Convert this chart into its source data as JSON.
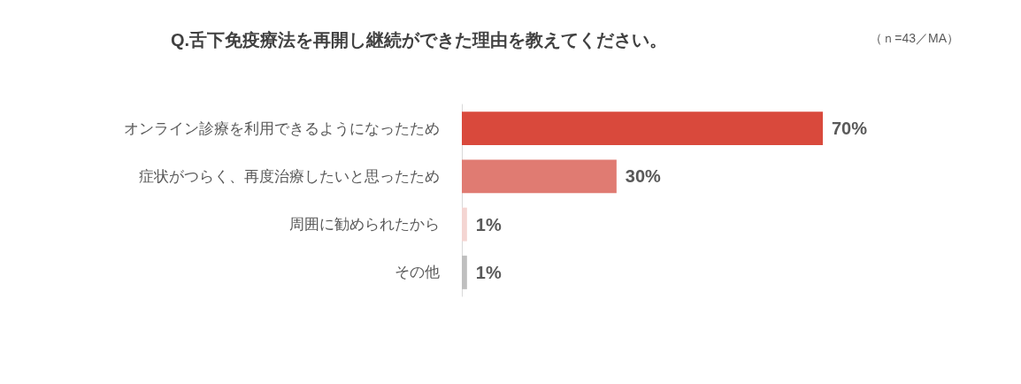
{
  "chart_data": {
    "type": "bar",
    "orientation": "horizontal",
    "title": "Q.舌下免疫療法を再開し継続ができた理由を教えてください。",
    "annotations": [
      "（ｎ=43／MA）"
    ],
    "categories": [
      "オンライン診療を利用できるようになったため",
      "症状がつらく、再度治療したいと思ったため",
      "周囲に勧められたから",
      "その他"
    ],
    "values": [
      70,
      30,
      1,
      1
    ],
    "colors": [
      "#d9493c",
      "#e07b72",
      "#f4d5d2",
      "#bfbfbf"
    ],
    "value_labels": [
      "70%",
      "30%",
      "1%",
      "1%"
    ]
  }
}
